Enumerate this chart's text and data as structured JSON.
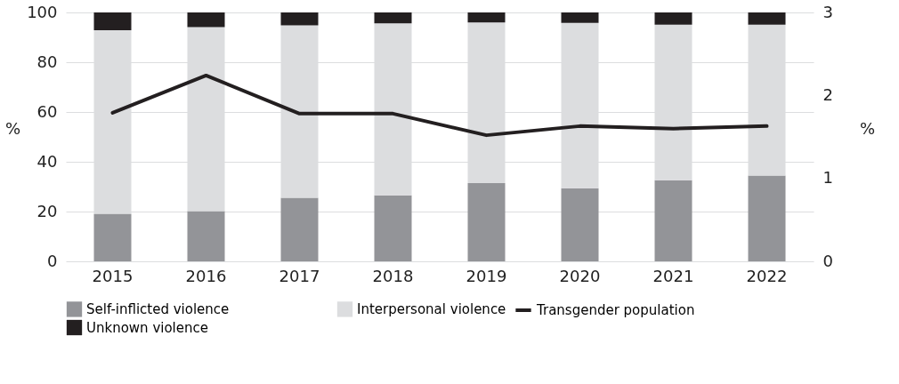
{
  "chart_data": {
    "type": "bar",
    "stacked": true,
    "ylabel": "%",
    "y2label": "%",
    "categories": [
      "2015",
      "2016",
      "2017",
      "2018",
      "2019",
      "2020",
      "2021",
      "2022"
    ],
    "series": [
      {
        "name": "Self-inflicted violence",
        "color": "#939498",
        "values": [
          19.1,
          20.2,
          25.5,
          26.5,
          31.4,
          29.4,
          32.6,
          34.5
        ]
      },
      {
        "name": "Interpersonal violence",
        "color": "#dcdddf",
        "values": [
          73.8,
          73.9,
          69.3,
          69.1,
          64.6,
          66.4,
          62.5,
          60.6
        ]
      },
      {
        "name": "Unknown violence",
        "color": "#231f20",
        "values": [
          7.1,
          5.9,
          5.2,
          4.4,
          4.0,
          4.2,
          4.9,
          4.9
        ]
      },
      {
        "name": "Transgender population",
        "type": "line",
        "axis": "y2",
        "color": "#231f20",
        "line_style": "solid",
        "marker": "none",
        "values": [
          1.79,
          2.24,
          1.78,
          1.78,
          1.52,
          1.63,
          1.6,
          1.63
        ]
      }
    ],
    "ylim": [
      0,
      100
    ],
    "yticks": [
      0,
      20,
      40,
      60,
      80,
      100
    ],
    "y2lim": [
      0,
      3
    ],
    "y2ticks": [
      0,
      1,
      2,
      3
    ],
    "grid": "y",
    "legend": "bottom"
  }
}
